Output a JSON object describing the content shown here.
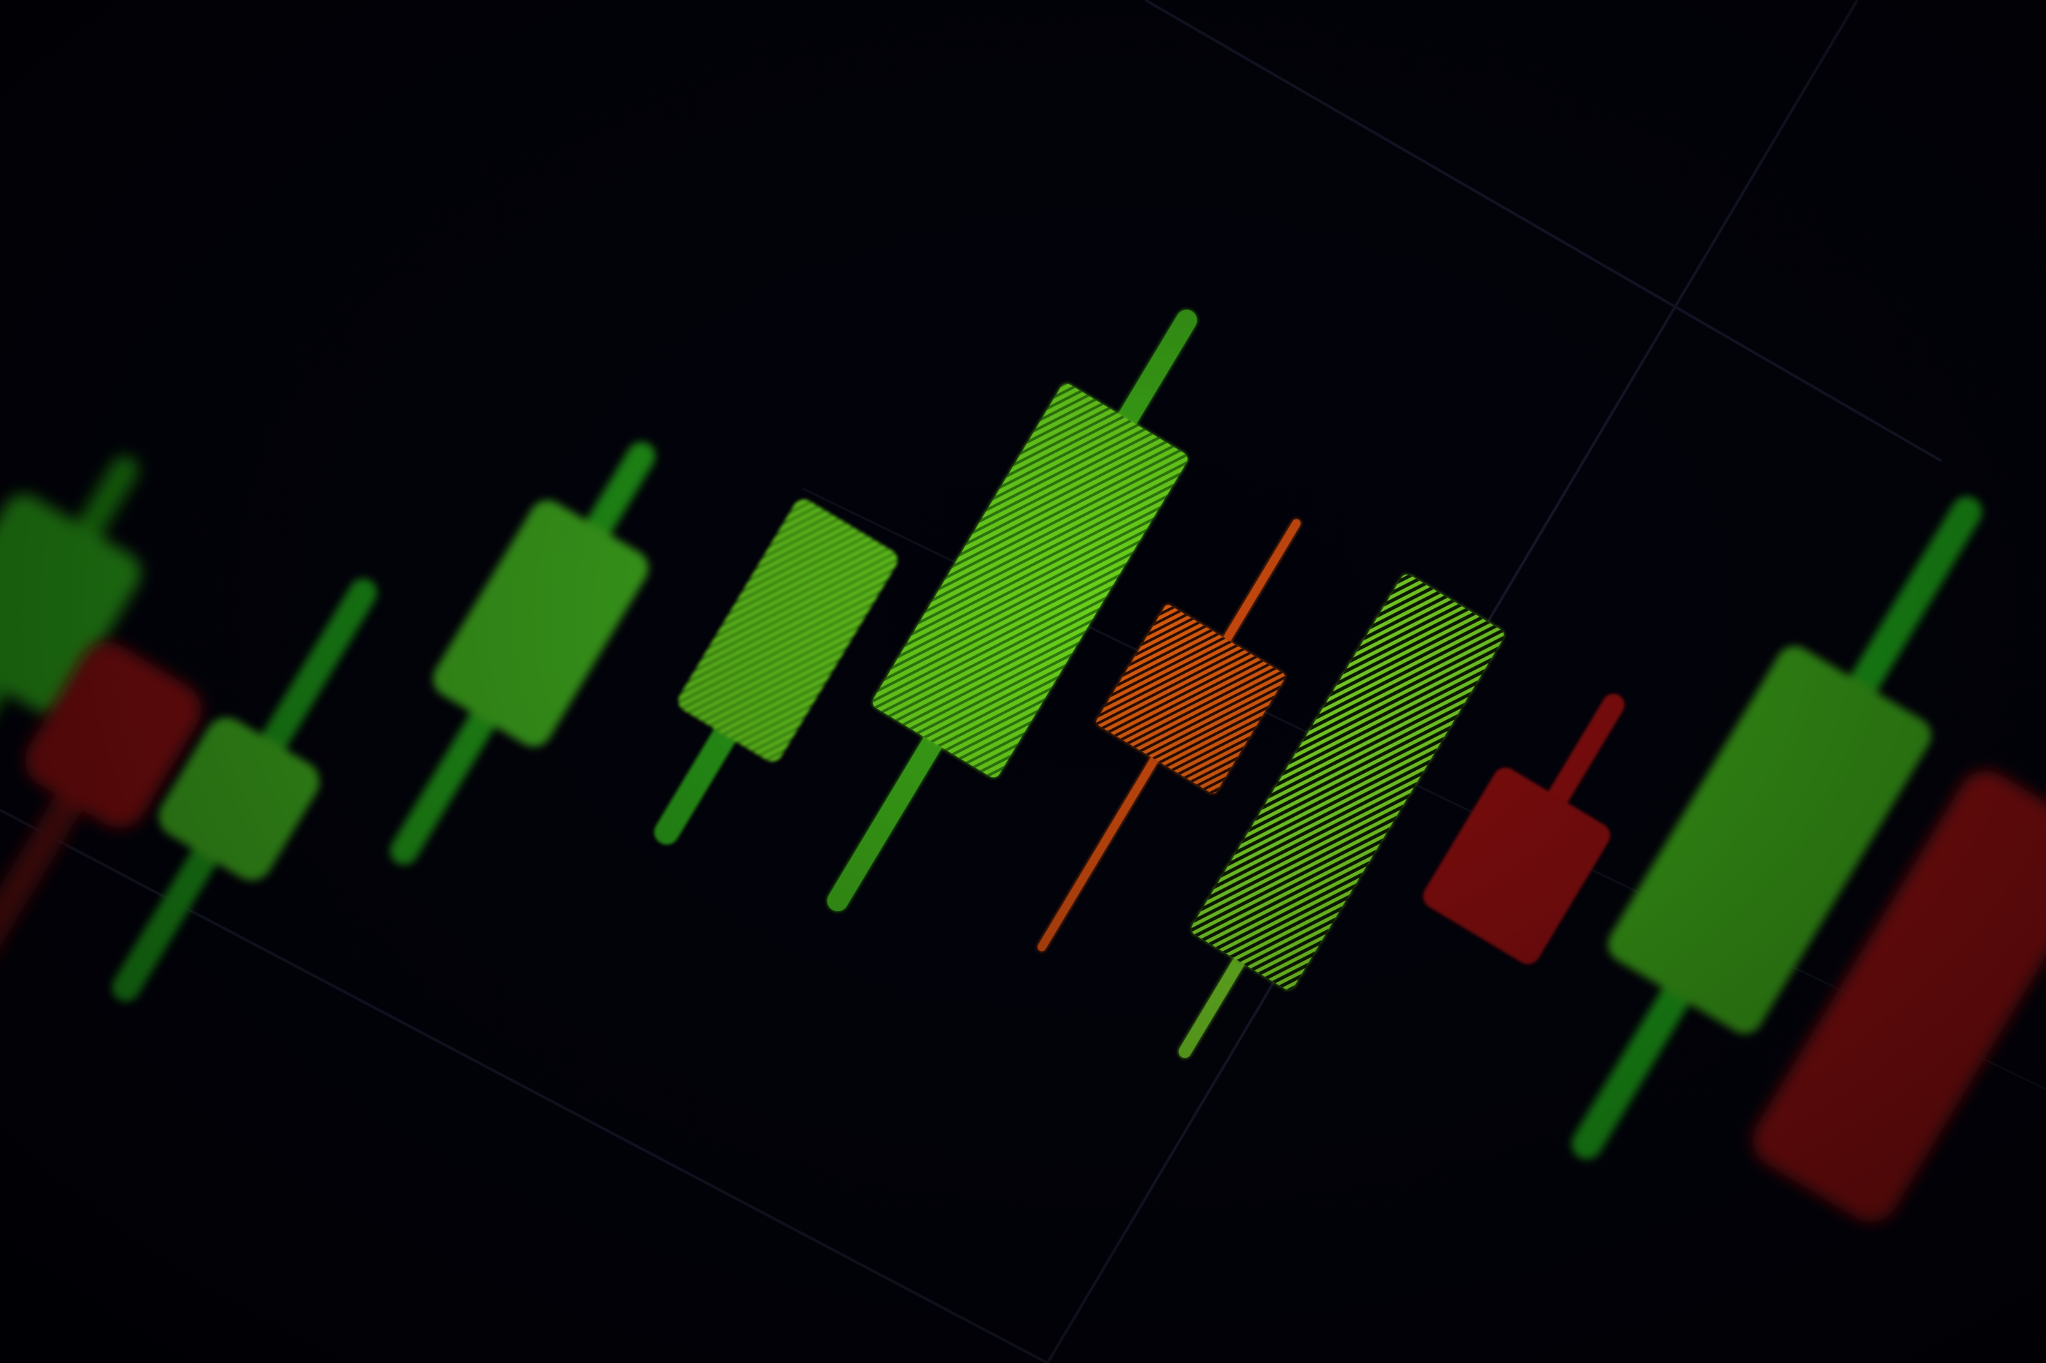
{
  "scene": {
    "kind": "photo",
    "subject": "candlestick-chart-on-screen",
    "colors": {
      "background": "#000003",
      "grid_line": "#1a1c30",
      "up": "#3ea80f",
      "up_bright": "#5ec81a",
      "down": "#7c0a08",
      "down_small": "#d0520c"
    }
  },
  "candles": [
    {
      "direction": "up",
      "style": "blur"
    },
    {
      "direction": "down",
      "style": "blur"
    },
    {
      "direction": "up",
      "style": "blur"
    },
    {
      "direction": "up",
      "style": "blur"
    },
    {
      "direction": "up",
      "style": "soft"
    },
    {
      "direction": "up",
      "style": "sharp"
    },
    {
      "direction": "down",
      "style": "sharp"
    },
    {
      "direction": "up",
      "style": "sharp"
    },
    {
      "direction": "down",
      "style": "soft"
    },
    {
      "direction": "up",
      "style": "blur"
    },
    {
      "direction": "down",
      "style": "blur"
    }
  ]
}
